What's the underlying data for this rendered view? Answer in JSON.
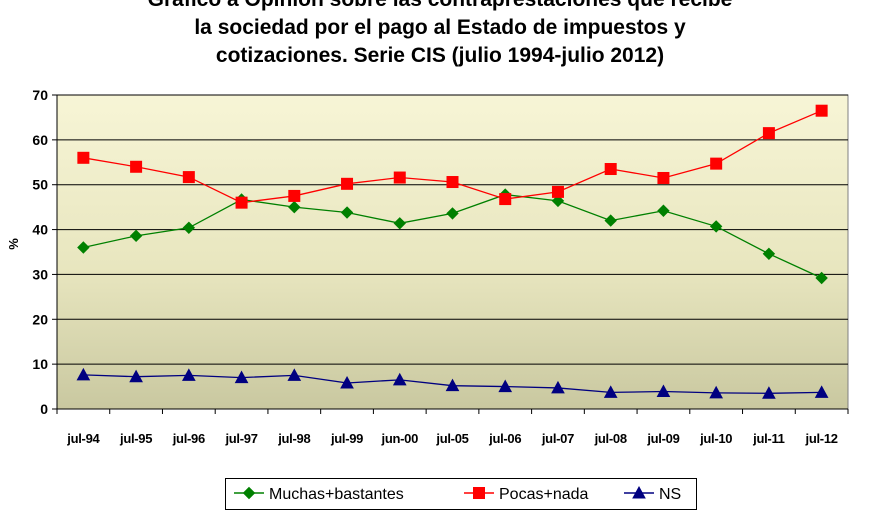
{
  "chart_data": {
    "type": "line",
    "title_lines": [
      "Gráfico a Opinión sobre las contraprestaciones que recibe",
      "la sociedad por el pago al Estado de impuestos y",
      "cotizaciones. Serie CIS (julio 1994-julio 2012)"
    ],
    "ylabel": "%",
    "xlabel": "",
    "categories": [
      "jul-94",
      "jul-95",
      "jul-96",
      "jul-97",
      "jul-98",
      "jul-99",
      "jun-00",
      "jul-05",
      "jul-06",
      "jul-07",
      "jul-08",
      "jul-09",
      "jul-10",
      "jul-11",
      "jul-12"
    ],
    "ylim": [
      0,
      70
    ],
    "yticks": [
      0,
      10,
      20,
      30,
      40,
      50,
      60,
      70
    ],
    "grid": true,
    "legend_position": "bottom",
    "series": [
      {
        "name": "Muchas+bastantes",
        "color": "#008000",
        "marker": "diamond",
        "values": [
          36,
          38.6,
          40.4,
          46.7,
          45,
          43.8,
          41.4,
          43.6,
          47.8,
          46.4,
          42,
          44.2,
          40.7,
          34.6,
          29.2
        ]
      },
      {
        "name": "Pocas+nada",
        "color": "#ff0000",
        "marker": "square",
        "values": [
          56,
          54,
          51.7,
          46,
          47.5,
          50.2,
          51.6,
          50.6,
          46.8,
          48.4,
          53.5,
          51.5,
          54.7,
          61.5,
          66.5
        ]
      },
      {
        "name": "NS",
        "color": "#000080",
        "marker": "triangle",
        "values": [
          7.6,
          7.2,
          7.5,
          7,
          7.5,
          5.8,
          6.5,
          5.2,
          5,
          4.7,
          3.7,
          3.9,
          3.6,
          3.5,
          3.7
        ]
      }
    ]
  }
}
